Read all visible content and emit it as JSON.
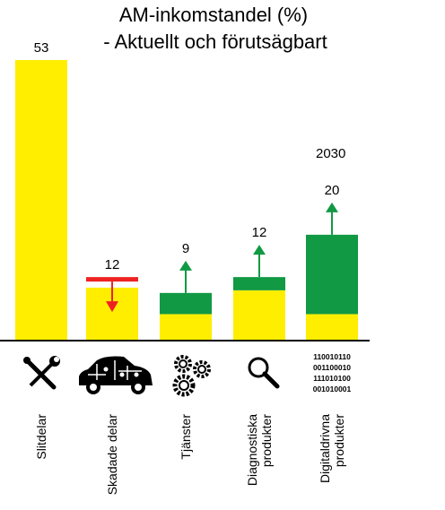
{
  "title_line1": "AM-inkomstandel (%)",
  "title_line2": "- Aktuellt och förutsägbart",
  "future_year_label": "2030",
  "colors": {
    "current": "#ffee00",
    "growth": "#119944",
    "decline": "#ee2222",
    "arrow_up": "#119944",
    "arrow_down": "#ee2222",
    "axis": "#000000"
  },
  "icons": [
    "wrench-screwdriver-icon",
    "car-puzzle-icon",
    "gears-icon",
    "magnifier-icon",
    "binary-code-icon"
  ],
  "binary_lines": [
    "110010110",
    "001100010",
    "111010100",
    "001010001"
  ],
  "chart_data": {
    "type": "bar",
    "title": "AM-inkomstandel (%) - Aktuellt och förutsägbart",
    "categories": [
      "Slitdelar",
      "Skadade delar",
      "Tjänster",
      "Diagnostiska produkter",
      "Digitaldrivna produkter"
    ],
    "category_lines": [
      [
        "Slitdelar"
      ],
      [
        "Skadade delar"
      ],
      [
        "Tjänster"
      ],
      [
        "Diagnostiska",
        "produkter"
      ],
      [
        "Digitaldrivna",
        "produkter"
      ]
    ],
    "series": [
      {
        "name": "",
        "values": [
          53,
          10,
          5,
          9.5,
          5
        ]
      },
      {
        "name": "",
        "values": [
          0,
          0,
          4,
          2.5,
          15
        ]
      }
    ],
    "value_labels": [
      "53",
      "12",
      "9",
      "12",
      "20"
    ],
    "trend": [
      "none",
      "down",
      "up",
      "up",
      "up"
    ],
    "decline_from": [
      null,
      12,
      null,
      null,
      null
    ],
    "ylim": [
      0,
      53
    ],
    "xlabel": "",
    "ylabel": "",
    "grid": false,
    "legend": "none"
  }
}
